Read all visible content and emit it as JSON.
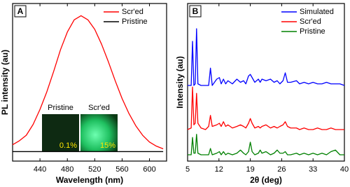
{
  "chart_data": [
    {
      "type": "line",
      "panel_label": "A",
      "x_label": "Wavelength (nm)",
      "y_label": "PL intensity (au)",
      "x": [
        400,
        410,
        420,
        430,
        440,
        450,
        460,
        470,
        480,
        490,
        500,
        510,
        520,
        530,
        540,
        550,
        560,
        570,
        580,
        590,
        600,
        610,
        620
      ],
      "series": [
        {
          "name": "Scr'ed",
          "color": "#ff0000",
          "values": [
            0.05,
            0.08,
            0.12,
            0.2,
            0.31,
            0.44,
            0.59,
            0.75,
            0.88,
            0.97,
            1.0,
            0.97,
            0.9,
            0.79,
            0.66,
            0.52,
            0.39,
            0.28,
            0.19,
            0.12,
            0.07,
            0.04,
            0.02
          ]
        },
        {
          "name": "Pristine",
          "color": "#000000",
          "values": [
            0,
            0,
            0,
            0,
            0,
            0,
            0,
            0,
            0,
            0,
            0,
            0,
            0,
            0,
            0,
            0,
            0,
            0,
            0,
            0,
            0,
            0,
            0
          ]
        }
      ],
      "xlim": [
        400,
        625
      ],
      "xticks": [
        440,
        480,
        520,
        560,
        600
      ],
      "ylim": [
        -0.07,
        1.09
      ],
      "legend": "upper right",
      "grid": false,
      "inset": {
        "labels": [
          "Pristine",
          "Scr'ed"
        ],
        "percentages": [
          "0.1%",
          "15%"
        ]
      }
    },
    {
      "type": "line",
      "panel_label": "B",
      "x_label": "2θ (deg)",
      "y_label": "Intensity (au)",
      "x": [
        5,
        5.8,
        6.1,
        6.4,
        6.7,
        7.0,
        7.3,
        8,
        9,
        9.7,
        10.1,
        10.5,
        11.5,
        12.1,
        12.5,
        13,
        13.5,
        14,
        15,
        16,
        16.8,
        17.5,
        18,
        18.6,
        19,
        19.4,
        20,
        20.8,
        21.2,
        21.6,
        22.5,
        23.5,
        24.3,
        25,
        25.6,
        26.3,
        26.8,
        27.3,
        28,
        29.3,
        30,
        31,
        32,
        33,
        34,
        35,
        36,
        37,
        38,
        39,
        40
      ],
      "series": [
        {
          "name": "Simulated",
          "color": "#0000ff",
          "values": [
            4.8,
            4.8,
            7.6,
            4.8,
            4.9,
            8.4,
            4.9,
            4.8,
            4.8,
            4.8,
            5.9,
            4.8,
            5.2,
            5.3,
            4.9,
            5.2,
            4.9,
            5.1,
            4.9,
            5.2,
            5.0,
            5.1,
            4.9,
            5.4,
            5.5,
            5.3,
            5.0,
            5.2,
            5.0,
            5.2,
            5.1,
            5.2,
            5.0,
            5.1,
            4.9,
            5.1,
            5.6,
            5.0,
            5.0,
            5.1,
            4.9,
            5.0,
            4.9,
            5.0,
            4.9,
            4.9,
            5.0,
            4.9,
            4.9,
            4.9,
            4.8
          ]
        },
        {
          "name": "Scr'ed",
          "color": "#ff0000",
          "values": [
            2.0,
            2.1,
            4.7,
            2.3,
            2.4,
            4.3,
            2.4,
            2.1,
            2.0,
            2.2,
            2.9,
            2.2,
            2.3,
            2.4,
            2.2,
            2.5,
            2.2,
            2.3,
            2.1,
            2.2,
            2.3,
            2.2,
            2.1,
            2.4,
            2.7,
            2.4,
            2.1,
            2.2,
            2.1,
            2.2,
            2.3,
            2.1,
            2.2,
            2.1,
            2.2,
            2.3,
            2.5,
            2.2,
            2.1,
            2.1,
            2.0,
            2.1,
            2.0,
            2.0,
            2.1,
            2.0,
            2.0,
            2.1,
            2.0,
            2.0,
            2.0
          ]
        },
        {
          "name": "Pristine",
          "color": "#008000",
          "values": [
            0.4,
            0.4,
            1.5,
            0.5,
            0.5,
            1.7,
            0.5,
            0.4,
            0.4,
            0.4,
            0.8,
            0.4,
            0.5,
            0.6,
            0.4,
            0.6,
            0.4,
            0.5,
            0.4,
            0.5,
            0.7,
            0.5,
            0.4,
            0.6,
            1.2,
            0.6,
            0.4,
            0.5,
            0.7,
            0.5,
            0.6,
            0.4,
            0.5,
            0.7,
            0.5,
            0.5,
            0.6,
            0.4,
            0.4,
            0.5,
            0.4,
            0.5,
            0.4,
            0.5,
            0.4,
            0.5,
            0.4,
            0.6,
            0.7,
            0.4,
            0.4
          ]
        }
      ],
      "xlim": [
        5,
        40
      ],
      "xticks": [
        5,
        12,
        19,
        26,
        33,
        40
      ],
      "ylim": [
        0,
        10
      ],
      "legend": "upper right",
      "grid": false
    }
  ]
}
